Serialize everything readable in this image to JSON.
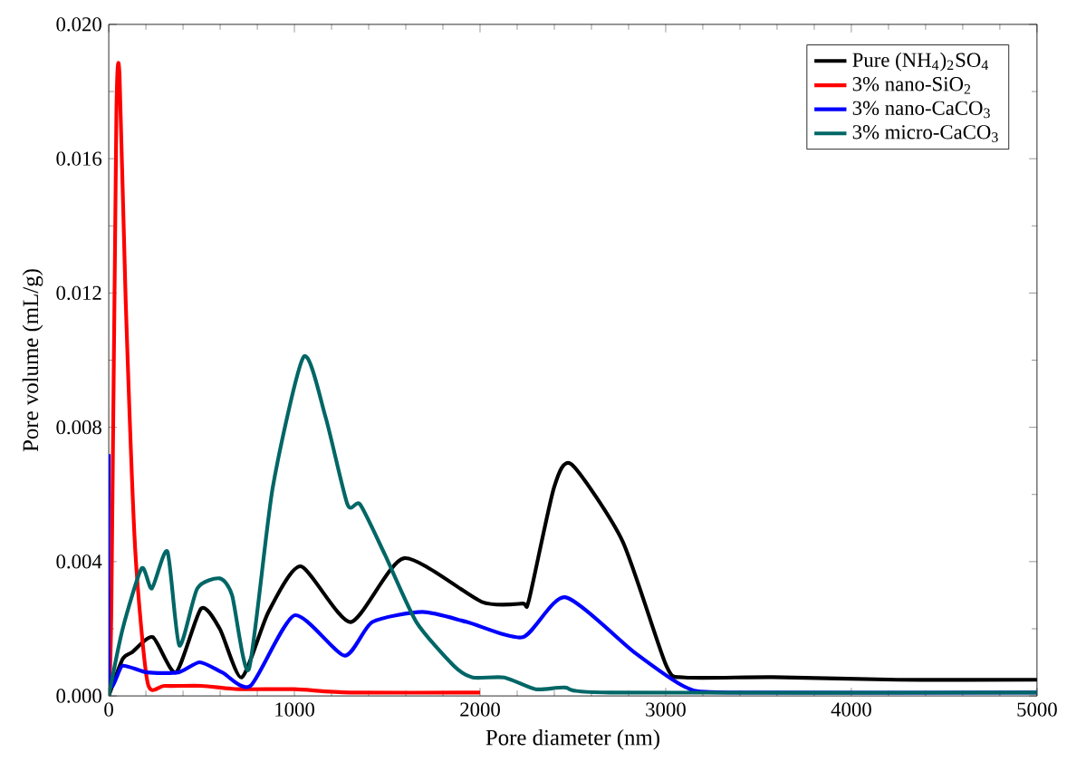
{
  "chart_data": {
    "type": "line",
    "xlabel": "Pore diameter (nm)",
    "ylabel": "Pore volume (mL/g)",
    "xlim": [
      0,
      5000
    ],
    "ylim": [
      0,
      0.02
    ],
    "xticks": [
      0,
      1000,
      2000,
      3000,
      4000,
      5000
    ],
    "yticks": [
      {
        "value": 0,
        "label": "0.000"
      },
      {
        "value": 0.004,
        "label": "0.004"
      },
      {
        "value": 0.008,
        "label": "0.008"
      },
      {
        "value": 0.012,
        "label": "0.012"
      },
      {
        "value": 0.016,
        "label": "0.016"
      },
      {
        "value": 0.02,
        "label": "0.020"
      }
    ],
    "legend": "top right",
    "grid": false,
    "marker": "none",
    "line_style": "solid",
    "series": [
      {
        "name": "Pure (NH$_{4}$)$_{2}$SO$_{4}$",
        "color": "#000000",
        "x": [
          0,
          75,
          126,
          237,
          362,
          497,
          598,
          716,
          860,
          1034,
          1303,
          1590,
          2010,
          2229,
          2263,
          2398,
          2492,
          2768,
          3003,
          3104,
          3576,
          4250,
          5000
        ],
        "values": [
          0,
          0.0011,
          0.0013,
          0.00175,
          0.0007,
          0.0026,
          0.002,
          0.00055,
          0.0025,
          0.00386,
          0.0022,
          0.0041,
          0.0028,
          0.00275,
          0.00285,
          0.0062,
          0.0069,
          0.0046,
          0.0009,
          0.00055,
          0.00056,
          0.00048,
          0.00048
        ]
      },
      {
        "name": "3% nano-SiO$_{2}$",
        "color": "#ff0000",
        "x": [
          0,
          14,
          41,
          58,
          91,
          142,
          209,
          300,
          500,
          700,
          1000,
          1300,
          2000
        ],
        "values": [
          0,
          0.0026,
          0.0173,
          0.0185,
          0.0118,
          0.0044,
          0.0004,
          0.0003,
          0.0003,
          0.0002,
          0.0002,
          0.0001,
          0.0001
        ]
      },
      {
        "name": "3% nano-CaCO$_{3}$",
        "color": "#0000ff",
        "x": [
          0,
          2,
          75,
          208,
          375,
          490,
          611,
          764,
          1000,
          1270,
          1420,
          1690,
          1930,
          2230,
          2458,
          2835,
          3104,
          3340,
          5000
        ],
        "values": [
          0.0072,
          0.0005,
          0.0009,
          0.0007,
          0.0007,
          0.001,
          0.0007,
          0.0003,
          0.0024,
          0.0012,
          0.0022,
          0.0025,
          0.0022,
          0.00175,
          0.00294,
          0.00128,
          0.00027,
          0.0001,
          0.0001
        ]
      },
      {
        "name": "3% micro-CaCO$_{3}$",
        "color": "#006666",
        "x": [
          0,
          75,
          177,
          232,
          316,
          380,
          477,
          598,
          664,
          755,
          883,
          1050,
          1168,
          1286,
          1354,
          1488,
          1657,
          1858,
          1960,
          2130,
          2300,
          2458,
          2700,
          5000
        ],
        "values": [
          0,
          0.002,
          0.0038,
          0.0032,
          0.0043,
          0.0015,
          0.0032,
          0.0035,
          0.003,
          0.0008,
          0.0062,
          0.0101,
          0.0083,
          0.0057,
          0.0057,
          0.0042,
          0.0022,
          0.0009,
          0.00055,
          0.00055,
          0.0002,
          0.00025,
          0.0001,
          0.0001
        ]
      }
    ]
  }
}
